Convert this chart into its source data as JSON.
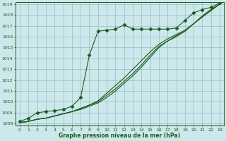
{
  "title": "Graphe pression niveau de la mer (hPa)",
  "bg_color": "#cce8ec",
  "grid_color": "#99bbbb",
  "line_color": "#1a5c1a",
  "xlim": [
    -0.5,
    23.5
  ],
  "ylim": [
    1007.8,
    1019.2
  ],
  "xticks": [
    0,
    1,
    2,
    3,
    4,
    5,
    6,
    7,
    8,
    9,
    10,
    11,
    12,
    13,
    14,
    15,
    16,
    17,
    18,
    19,
    20,
    21,
    22,
    23
  ],
  "yticks": [
    1008,
    1009,
    1010,
    1011,
    1012,
    1013,
    1014,
    1015,
    1016,
    1017,
    1018,
    1019
  ],
  "series_main": [
    1008.2,
    1008.5,
    1009.0,
    1009.1,
    1009.2,
    1009.3,
    1009.6,
    1010.4,
    1014.3,
    1016.5,
    1016.6,
    1016.7,
    1017.1,
    1016.7,
    1016.7,
    1016.7,
    1016.7,
    1016.7,
    1016.8,
    1017.5,
    1018.2,
    1018.5,
    1018.7,
    1019.1
  ],
  "series_linear1": [
    1008.1,
    1008.2,
    1008.4,
    1008.5,
    1008.7,
    1008.9,
    1009.1,
    1009.4,
    1009.7,
    1010.1,
    1010.8,
    1011.5,
    1012.2,
    1013.0,
    1013.8,
    1014.6,
    1015.3,
    1015.8,
    1016.2,
    1016.6,
    1017.2,
    1017.8,
    1018.4,
    1019.0
  ],
  "series_linear2": [
    1008.1,
    1008.2,
    1008.4,
    1008.5,
    1008.7,
    1008.9,
    1009.1,
    1009.4,
    1009.7,
    1010.0,
    1010.6,
    1011.2,
    1011.9,
    1012.6,
    1013.4,
    1014.3,
    1015.1,
    1015.6,
    1016.1,
    1016.5,
    1017.2,
    1017.9,
    1018.5,
    1019.0
  ],
  "series_linear3": [
    1008.1,
    1008.2,
    1008.4,
    1008.5,
    1008.7,
    1008.9,
    1009.1,
    1009.3,
    1009.6,
    1009.9,
    1010.4,
    1011.0,
    1011.7,
    1012.4,
    1013.2,
    1014.1,
    1015.0,
    1015.6,
    1016.0,
    1016.5,
    1017.2,
    1017.9,
    1018.5,
    1019.0
  ],
  "marker_style": "D",
  "marker_size": 2.5
}
